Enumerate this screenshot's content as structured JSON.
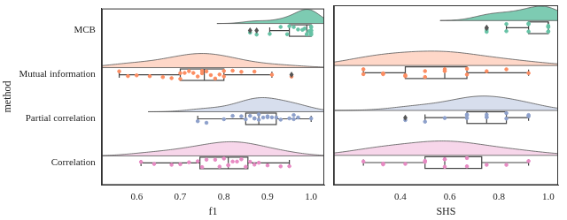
{
  "chart_data": [
    {
      "type": "box",
      "x_label": "f1",
      "y_label": "method",
      "categories": [
        "MCB",
        "Mutual information",
        "Partial correlation",
        "Correlation"
      ],
      "colors": [
        "#66c2a5",
        "#fc8d62",
        "#8da0cb",
        "#e78ac3"
      ],
      "xlim": [
        0.52,
        1.03
      ],
      "xticks": [
        0.6,
        0.7,
        0.8,
        0.9,
        {
          "value": 1,
          "label": "1.0"
        }
      ],
      "grid": false,
      "tick_labels": true,
      "points": [
        [
          0.86,
          0.875,
          0.905,
          0.93,
          0.945,
          0.95,
          0.96,
          0.97,
          0.98,
          0.985,
          0.99,
          0.99,
          0.995,
          1.0,
          1.0,
          1.0,
          1.0,
          1.0,
          1.0,
          1.0
        ],
        [
          0.56,
          0.58,
          0.6,
          0.63,
          0.66,
          0.68,
          0.7,
          0.7,
          0.71,
          0.72,
          0.73,
          0.74,
          0.75,
          0.75,
          0.76,
          0.77,
          0.78,
          0.79,
          0.8,
          0.8,
          0.82,
          0.84,
          0.87,
          0.91,
          0.955
        ],
        [
          0.74,
          0.76,
          0.8,
          0.82,
          0.84,
          0.85,
          0.86,
          0.87,
          0.87,
          0.88,
          0.88,
          0.89,
          0.9,
          0.9,
          0.91,
          0.92,
          0.93,
          0.95,
          0.96,
          0.96,
          0.97,
          1.0
        ],
        [
          0.61,
          0.64,
          0.68,
          0.7,
          0.72,
          0.74,
          0.75,
          0.76,
          0.78,
          0.79,
          0.8,
          0.81,
          0.81,
          0.82,
          0.83,
          0.84,
          0.85,
          0.86,
          0.87,
          0.88,
          0.9,
          0.93,
          0.95
        ]
      ],
      "boxes": [
        {
          "whislo": 0.905,
          "q1": 0.95,
          "med": 0.99,
          "q3": 1.0,
          "whishi": 1.0,
          "fliers": [
            0.86,
            0.875
          ]
        },
        {
          "whislo": 0.56,
          "q1": 0.7,
          "med": 0.755,
          "q3": 0.8,
          "whishi": 0.91,
          "fliers": [
            0.955
          ]
        },
        {
          "whislo": 0.74,
          "q1": 0.85,
          "med": 0.88,
          "q3": 0.92,
          "whishi": 1.0,
          "fliers": []
        },
        {
          "whislo": 0.61,
          "q1": 0.745,
          "med": 0.81,
          "q3": 0.855,
          "whishi": 0.95,
          "fliers": []
        }
      ]
    },
    {
      "type": "box",
      "x_label": "SHS",
      "categories": [
        "MCB",
        "Mutual information",
        "Partial correlation",
        "Correlation"
      ],
      "colors": [
        "#66c2a5",
        "#fc8d62",
        "#8da0cb",
        "#e78ac3"
      ],
      "xlim": [
        0.13,
        1.04
      ],
      "xticks": [
        0.4,
        0.6,
        0.8,
        {
          "value": 1,
          "label": "1.0"
        }
      ],
      "grid": false,
      "tick_labels": "x",
      "points": [
        [
          0.75,
          0.75,
          0.83,
          0.83,
          0.92,
          0.92,
          0.92,
          1.0,
          1.0,
          1.0,
          1.0,
          1.0
        ],
        [
          0.25,
          0.25,
          0.33,
          0.33,
          0.42,
          0.42,
          0.5,
          0.5,
          0.58,
          0.58,
          0.58,
          0.67,
          0.67,
          0.75,
          0.83,
          0.92
        ],
        [
          0.42,
          0.5,
          0.58,
          0.67,
          0.67,
          0.67,
          0.75,
          0.75,
          0.75,
          0.83,
          0.83,
          0.92,
          0.92
        ],
        [
          0.25,
          0.33,
          0.33,
          0.42,
          0.5,
          0.5,
          0.58,
          0.58,
          0.58,
          0.67,
          0.67,
          0.75,
          0.83,
          0.92
        ]
      ],
      "boxes": [
        {
          "whislo": 0.83,
          "q1": 0.92,
          "med": 1.0,
          "q3": 1.0,
          "whishi": 1.0,
          "fliers": [
            0.75,
            0.75
          ]
        },
        {
          "whislo": 0.25,
          "q1": 0.42,
          "med": 0.58,
          "q3": 0.67,
          "whishi": 0.92,
          "fliers": []
        },
        {
          "whislo": 0.5,
          "q1": 0.67,
          "med": 0.75,
          "q3": 0.83,
          "whishi": 0.92,
          "fliers": [
            0.42
          ]
        },
        {
          "whislo": 0.25,
          "q1": 0.5,
          "med": 0.58,
          "q3": 0.73,
          "whishi": 0.92,
          "fliers": []
        }
      ]
    }
  ]
}
